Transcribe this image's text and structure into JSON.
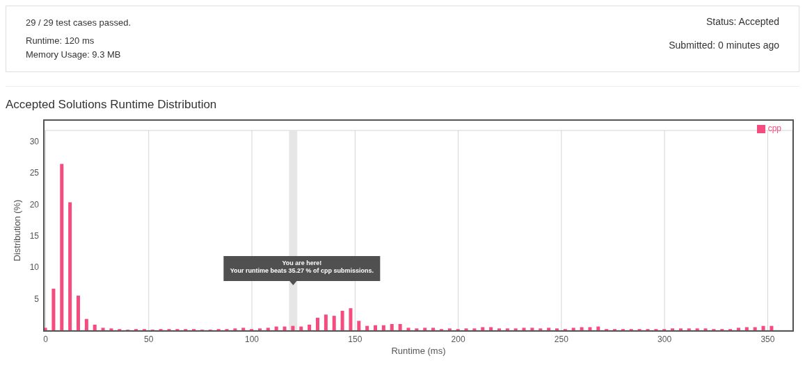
{
  "chart_data": {
    "type": "bar",
    "title": "Accepted Solutions Runtime Distribution",
    "xlabel": "Runtime (ms)",
    "ylabel": "Distribution (%)",
    "annotations": [
      "29 / 29 test cases passed.",
      "Runtime: 120 ms",
      "Memory Usage: 9.3 MB",
      "Status: Accepted",
      "Submitted: 0 minutes ago",
      "You are here!\nYour runtime beats 35.27 % of cpp submissions."
    ],
    "x": [
      0,
      4,
      8,
      12,
      16,
      20,
      24,
      28,
      32,
      36,
      40,
      44,
      48,
      52,
      56,
      60,
      64,
      68,
      72,
      76,
      80,
      84,
      88,
      92,
      96,
      100,
      104,
      108,
      112,
      116,
      120,
      124,
      128,
      132,
      136,
      140,
      144,
      148,
      152,
      156,
      160,
      164,
      168,
      172,
      176,
      180,
      184,
      188,
      192,
      196,
      200,
      204,
      208,
      212,
      216,
      220,
      224,
      228,
      232,
      236,
      240,
      244,
      248,
      252,
      256,
      260,
      264,
      268,
      272,
      276,
      280,
      284,
      288,
      292,
      296,
      300,
      304,
      308,
      312,
      316,
      320,
      324,
      328,
      332,
      336,
      340,
      344,
      348,
      352
    ],
    "series": [
      {
        "name": "cpp",
        "color": "#f54c7f",
        "values": [
          0.4,
          6.6,
          26.4,
          20.3,
          5.5,
          1.8,
          0.9,
          0.4,
          0.3,
          0.2,
          0.1,
          0.2,
          0.2,
          0.1,
          0.2,
          0.2,
          0.2,
          0.2,
          0.2,
          0.1,
          0.1,
          0.2,
          0.2,
          0.3,
          0.4,
          0.2,
          0.3,
          0.4,
          0.6,
          0.6,
          0.7,
          0.6,
          0.9,
          2.0,
          2.5,
          2.3,
          3.1,
          3.5,
          1.5,
          0.7,
          0.8,
          0.8,
          1.0,
          1.0,
          0.4,
          0.3,
          0.4,
          0.4,
          0.2,
          0.3,
          0.2,
          0.3,
          0.3,
          0.5,
          0.5,
          0.3,
          0.3,
          0.3,
          0.4,
          0.4,
          0.3,
          0.4,
          0.3,
          0.2,
          0.4,
          0.5,
          0.5,
          0.6,
          0.2,
          0.2,
          0.2,
          0.2,
          0.2,
          0.2,
          0.2,
          0.2,
          0.3,
          0.3,
          0.3,
          0.3,
          0.3,
          0.2,
          0.2,
          0.2,
          0.4,
          0.5,
          0.5,
          0.7,
          0.7
        ]
      }
    ],
    "xlim": [
      -0.5,
      362
    ],
    "xticks": [
      0,
      50,
      100,
      150,
      200,
      250,
      300,
      350
    ],
    "ylim": [
      0,
      31.7
    ],
    "yticks": [
      5,
      10,
      15,
      20,
      25,
      30
    ],
    "bands": [
      {
        "axis": "x",
        "from": 118,
        "to": 122,
        "color": "#e6e6e6"
      }
    ],
    "grid": true,
    "legend": "top right"
  }
}
